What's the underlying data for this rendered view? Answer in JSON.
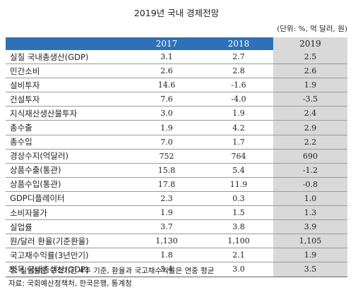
{
  "title": "2019년 국내 경제전망",
  "unit": "(단위: %, 억 달러, 원)",
  "table": {
    "headers": [
      "",
      "2017",
      "2018",
      "2019"
    ],
    "rows": [
      {
        "label": "실질 국내총생산(GDP)",
        "v2017": "3.1",
        "v2018": "2.7",
        "v2019": "2.5"
      },
      {
        "label": "민간소비",
        "v2017": "2.6",
        "v2018": "2.8",
        "v2019": "2.6"
      },
      {
        "label": "설비투자",
        "v2017": "14.6",
        "v2018": "-1.6",
        "v2019": "1.9"
      },
      {
        "label": "건설투자",
        "v2017": "7.6",
        "v2018": "-4.0",
        "v2019": "-3.5"
      },
      {
        "label": "지식재산생산물투자",
        "v2017": "3.0",
        "v2018": "1.9",
        "v2019": "2.4"
      },
      {
        "label": "총수출",
        "v2017": "1.9",
        "v2018": "4.2",
        "v2019": "2.9"
      },
      {
        "label": "총수입",
        "v2017": "7.0",
        "v2018": "1.7",
        "v2019": "2.2"
      },
      {
        "label": "경상수지(억달러)",
        "v2017": "752",
        "v2018": "764",
        "v2019": "690"
      },
      {
        "label": "상품수출(통관)",
        "v2017": "15.8",
        "v2018": "5.4",
        "v2019": "-1.2"
      },
      {
        "label": "상품수입(통관)",
        "v2017": "17.8",
        "v2018": "11.9",
        "v2019": "-0.8"
      },
      {
        "label": "GDP디플레이터",
        "v2017": "2.3",
        "v2018": "0.3",
        "v2019": "1.0"
      },
      {
        "label": "소비자물가",
        "v2017": "1.9",
        "v2018": "1.5",
        "v2019": "1.3"
      },
      {
        "label": "실업률",
        "v2017": "3.7",
        "v2018": "3.8",
        "v2019": "3.9"
      },
      {
        "label": "원/달러 환율(기준환율)",
        "v2017": "1,130",
        "v2018": "1,100",
        "v2019": "1,105"
      },
      {
        "label": "국고채수익률(3년만기)",
        "v2017": "1.8",
        "v2018": "2.1",
        "v2019": "1.9"
      },
      {
        "label": "명목 국내총생산(GDP)",
        "v2017": "5.4",
        "v2018": "3.0",
        "v2019": "3.5"
      }
    ]
  },
  "notes": [
    "주: 실업률은 구직기간 4주 기준, 환율과 국고채수익률은 연중 평균",
    "자료: 국회예산정책처, 한국은행, 통계청"
  ],
  "colors": {
    "header": "#2f70b8",
    "highlight": "#d9d9d9"
  }
}
